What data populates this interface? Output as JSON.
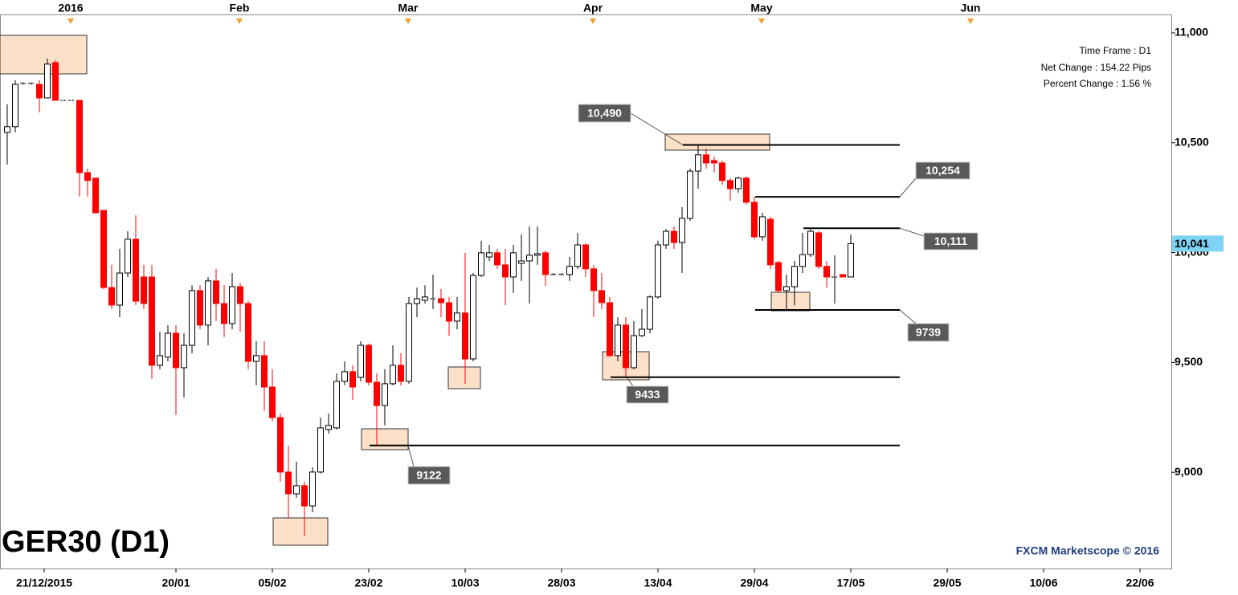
{
  "chart_data": {
    "type": "candlestick",
    "title": "GER30 (D1)",
    "info": [
      "Time Frame : D1",
      "Net Change : 154.22 Pips",
      "Percent Change : 1.56 %"
    ],
    "watermark": "FXCM Marketscope © 2016",
    "up_color": "#ffffff",
    "down_color": "#ff0000",
    "open": [
      10547,
      10573,
      10770,
      10770,
      10766,
      10704,
      10865,
      10693,
      10693,
      10693,
      10364,
      10339,
      10192,
      9841,
      9761,
      9907,
      10061,
      9889,
      9889,
      9487,
      9524,
      9633,
      9476,
      9578,
      9827,
      9670,
      9871,
      9768,
      9677,
      9845,
      9768,
      9505,
      9531,
      9388,
      9249,
      9001,
      8902,
      8939,
      8847,
      9001,
      9195,
      9202,
      9414,
      9458,
      9432,
      9578,
      9410,
      9304,
      9403,
      9487,
      9414,
      9768,
      9783,
      9790,
      9790,
      9772,
      9688,
      9725,
      9516,
      9896,
      9980,
      9999,
      9944,
      9889,
      9951,
      9962,
      9988,
      9999,
      9900,
      9900,
      9900,
      9937,
      10035,
      9926,
      9827,
      9772,
      9531,
      9670,
      9476,
      9622,
      9651,
      9798,
      10035,
      10097,
      10046,
      10156,
      10371,
      10445,
      10419,
      10408,
      10328,
      10291,
      10339,
      10229,
      10072,
      10152,
      9955,
      9827,
      9845,
      9937,
      9991,
      10090,
      9937,
      9889,
      9900,
      9889
    ],
    "high": [
      10675,
      10785,
      10775,
      10775,
      10785,
      10883,
      10876,
      10693,
      10693,
      10693,
      10382,
      10339,
      10192,
      9944,
      10017,
      10097,
      10170,
      9944,
      9944,
      9640,
      9670,
      9670,
      9633,
      9852,
      9852,
      9889,
      9926,
      9852,
      9907,
      9863,
      9779,
      9597,
      9597,
      9469,
      9268,
      9121,
      9048,
      8957,
      9023,
      9249,
      9268,
      9450,
      9505,
      9487,
      9597,
      9586,
      9450,
      9469,
      9578,
      9542,
      9798,
      9841,
      9852,
      9900,
      9834,
      9798,
      9798,
      9999,
      9907,
      10054,
      10035,
      10017,
      10017,
      10035,
      10083,
      10119,
      10119,
      10010,
      9907,
      9907,
      9980,
      10090,
      10043,
      9944,
      9907,
      9798,
      9706,
      9706,
      9688,
      9743,
      9805,
      10054,
      10108,
      10119,
      10207,
      10382,
      10490,
      10474,
      10437,
      10419,
      10339,
      10346,
      10346,
      10254,
      10181,
      10163,
      9962,
      9900,
      9962,
      10090,
      10111,
      10097,
      9962,
      9988,
      9900,
      10083
    ],
    "low": [
      10401,
      10547,
      10765,
      10765,
      10638,
      10704,
      10693,
      10693,
      10693,
      10255,
      10255,
      10181,
      9834,
      9743,
      9706,
      9889,
      9761,
      9743,
      9425,
      9469,
      9505,
      9260,
      9341,
      9542,
      9651,
      9578,
      9688,
      9615,
      9651,
      9640,
      9469,
      9396,
      9279,
      9231,
      8957,
      8793,
      8884,
      8708,
      8818,
      8994,
      9176,
      9195,
      9396,
      9330,
      9414,
      9396,
      9122,
      9213,
      9396,
      9396,
      9403,
      9706,
      9768,
      9743,
      9706,
      9622,
      9651,
      9403,
      9505,
      9889,
      9962,
      9926,
      9761,
      9816,
      9871,
      9768,
      9944,
      9849,
      9896,
      9896,
      9871,
      9926,
      9889,
      9706,
      9743,
      9524,
      9505,
      9433,
      9469,
      9615,
      9633,
      9790,
      10017,
      10017,
      9907,
      10145,
      10291,
      10382,
      10364,
      10309,
      10236,
      10273,
      10218,
      10061,
      10054,
      9926,
      9816,
      9739,
      9760,
      9907,
      9980,
      9926,
      9841,
      9768,
      9889,
      9889
    ],
    "close": [
      10573,
      10766,
      10770,
      10770,
      10704,
      10858,
      10693,
      10693,
      10693,
      10364,
      10328,
      10181,
      9841,
      9761,
      9907,
      10061,
      9779,
      9768,
      9487,
      9531,
      9633,
      9476,
      9578,
      9827,
      9670,
      9871,
      9768,
      9677,
      9845,
      9768,
      9505,
      9531,
      9388,
      9249,
      9001,
      8902,
      8939,
      8847,
      9001,
      9202,
      9213,
      9414,
      9458,
      9388,
      9578,
      9410,
      9304,
      9403,
      9487,
      9414,
      9768,
      9790,
      9798,
      9790,
      9772,
      9688,
      9725,
      9516,
      9896,
      9999,
      9999,
      9944,
      9889,
      9999,
      9962,
      9988,
      9995,
      9900,
      9900,
      9900,
      9937,
      10035,
      9926,
      9827,
      9772,
      9531,
      9670,
      9476,
      9622,
      9651,
      9798,
      10035,
      10097,
      10046,
      10156,
      10371,
      10445,
      10408,
      10408,
      10328,
      10291,
      10339,
      10229,
      10072,
      10163,
      9944,
      9827,
      9845,
      9937,
      9991,
      10097,
      9937,
      9889,
      9889,
      9889,
      10041
    ],
    "levels": [
      {
        "value": 10490,
        "label": "10,490"
      },
      {
        "value": 10254,
        "label": "10,254"
      },
      {
        "value": 10111,
        "label": "10,111"
      },
      {
        "value": 9739,
        "label": "9739"
      },
      {
        "value": 9433,
        "label": "9433"
      },
      {
        "value": 9122,
        "label": "9122"
      }
    ],
    "last_price": {
      "value": 10041,
      "label": "10,041"
    },
    "ylim": [
      8562,
      11084
    ],
    "yticks": [
      {
        "value": 9000,
        "label": "9,000"
      },
      {
        "value": 9500,
        "label": "9,500"
      },
      {
        "value": 10000,
        "label": "10,000"
      },
      {
        "value": 10500,
        "label": "10,500"
      },
      {
        "value": 11000,
        "label": "11,000"
      }
    ],
    "xlim": [
      -0.9,
      144.9
    ],
    "xticks": [
      {
        "value": 4.6,
        "label": "21/12/2015"
      },
      {
        "value": 21,
        "label": "20/01"
      },
      {
        "value": 33,
        "label": "05/02"
      },
      {
        "value": 45,
        "label": "23/02"
      },
      {
        "value": 57,
        "label": "10/03"
      },
      {
        "value": 69,
        "label": "28/03"
      },
      {
        "value": 81,
        "label": "13/04"
      },
      {
        "value": 93,
        "label": "29/04"
      },
      {
        "value": 105,
        "label": "17/05"
      },
      {
        "value": 117,
        "label": "29/05"
      },
      {
        "value": 129,
        "label": "10/06"
      },
      {
        "value": 141,
        "label": "22/06"
      }
    ],
    "top_ticks": [
      {
        "value": 7.9,
        "label": "2016"
      },
      {
        "value": 28.9,
        "label": "Feb"
      },
      {
        "value": 49.9,
        "label": "Mar"
      },
      {
        "value": 72.9,
        "label": "Apr"
      },
      {
        "value": 93.9,
        "label": "May"
      },
      {
        "value": 119.9,
        "label": "Jun"
      }
    ]
  }
}
